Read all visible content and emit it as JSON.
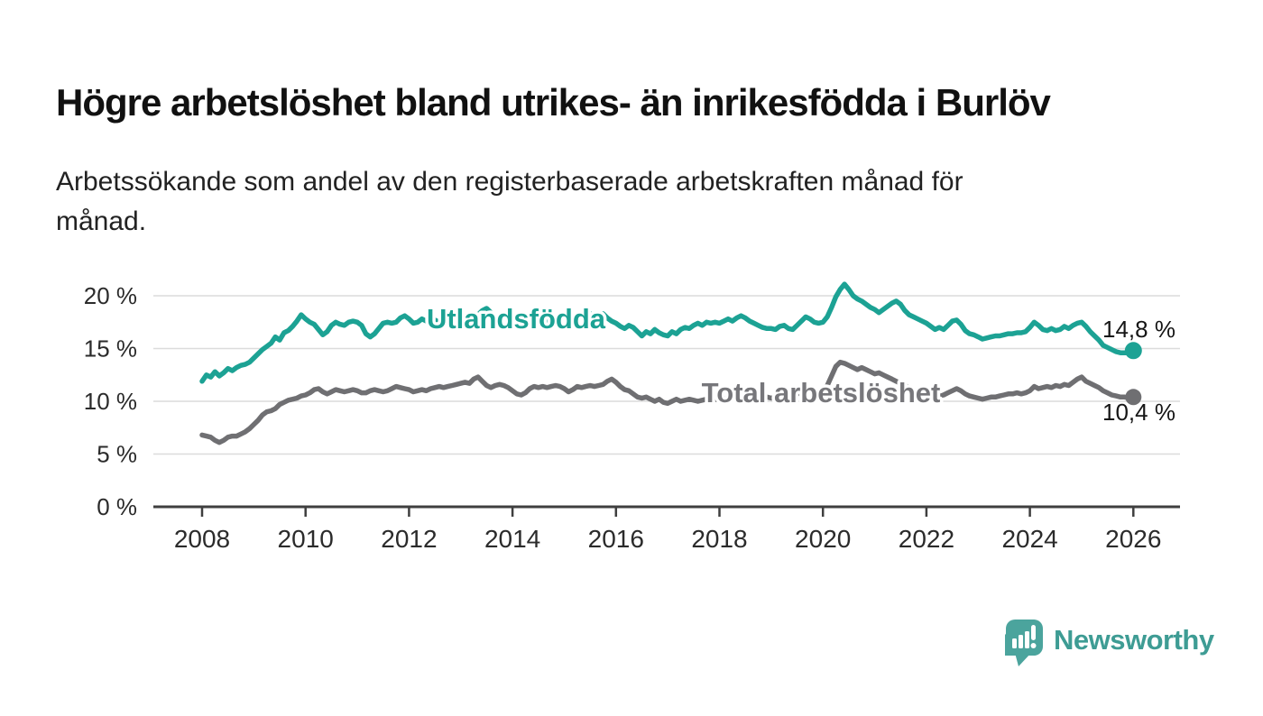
{
  "page": {
    "title": "Högre arbetslöshet bland utrikes- än inrikesfödda i Burlöv",
    "subtitle_line1": "Arbetssökande som andel av den registerbaserade arbetskraften månad för",
    "subtitle_line2": "månad."
  },
  "branding": {
    "logo_text": "Newsworthy",
    "logo_icon": "speech-bubble-bar-chart-icon",
    "icon_color": "#4BA49D",
    "text_color": "#3E9C94"
  },
  "chart_data": {
    "type": "line",
    "frequency": "monthly",
    "x_start_year": 2008,
    "x_end_year": 2026,
    "x_tick_labels": [
      "2008",
      "2010",
      "2012",
      "2014",
      "2016",
      "2018",
      "2020",
      "2022",
      "2024",
      "2026"
    ],
    "y_ticks": [
      0,
      5,
      10,
      15,
      20
    ],
    "y_tick_labels": [
      "0 %",
      "5 %",
      "10 %",
      "15 %",
      "20 %"
    ],
    "ylim": [
      0,
      22
    ],
    "grid": "horizontal",
    "grid_color": "#DCDCDC",
    "axis_color": "#3F3F3F",
    "tick_text_color": "#2B2B2B",
    "value_label_color": "#161616",
    "series": [
      {
        "name": "Utlandsfödda",
        "color": "#1CA294",
        "label_color": "#1CA294",
        "end_value": 14.8,
        "end_value_label": "14,8 %",
        "values": [
          11.9,
          12.5,
          12.3,
          12.8,
          12.4,
          12.7,
          13.1,
          12.9,
          13.2,
          13.4,
          13.5,
          13.7,
          14.1,
          14.5,
          14.9,
          15.2,
          15.5,
          16.1,
          15.8,
          16.5,
          16.7,
          17.1,
          17.6,
          18.2,
          17.8,
          17.5,
          17.3,
          16.8,
          16.3,
          16.6,
          17.2,
          17.5,
          17.3,
          17.2,
          17.5,
          17.6,
          17.5,
          17.2,
          16.4,
          16.1,
          16.4,
          16.9,
          17.4,
          17.5,
          17.4,
          17.5,
          17.9,
          18.1,
          17.8,
          17.4,
          17.5,
          17.8,
          17.6,
          17.4,
          17.7,
          17.5,
          17.3,
          17.6,
          17.8,
          17.6,
          17.7,
          17.9,
          18.1,
          17.9,
          18.2,
          18.6,
          18.8,
          18.4,
          18.0,
          17.8,
          17.9,
          17.7,
          17.6,
          17.8,
          17.6,
          17.4,
          17.6,
          17.8,
          17.5,
          17.3,
          17.5,
          17.7,
          17.6,
          17.8,
          17.9,
          17.7,
          17.8,
          18.0,
          17.9,
          18.1,
          18.3,
          18.1,
          17.9,
          18.3,
          17.9,
          17.6,
          17.4,
          17.1,
          16.9,
          17.2,
          17.0,
          16.6,
          16.2,
          16.6,
          16.4,
          16.8,
          16.5,
          16.3,
          16.2,
          16.6,
          16.4,
          16.8,
          17.0,
          16.9,
          17.2,
          17.4,
          17.2,
          17.5,
          17.4,
          17.5,
          17.4,
          17.6,
          17.8,
          17.6,
          17.9,
          18.1,
          17.9,
          17.6,
          17.4,
          17.2,
          17.0,
          16.9,
          16.9,
          16.8,
          17.1,
          17.2,
          16.9,
          16.8,
          17.2,
          17.6,
          18.0,
          17.8,
          17.5,
          17.4,
          17.5,
          18.0,
          18.9,
          19.9,
          20.6,
          21.1,
          20.6,
          20.0,
          19.7,
          19.5,
          19.2,
          18.9,
          18.7,
          18.4,
          18.7,
          19.0,
          19.3,
          19.5,
          19.2,
          18.6,
          18.2,
          18.0,
          17.8,
          17.6,
          17.4,
          17.1,
          16.8,
          17.0,
          16.8,
          17.2,
          17.6,
          17.7,
          17.3,
          16.7,
          16.4,
          16.3,
          16.1,
          15.9,
          16.0,
          16.1,
          16.2,
          16.2,
          16.3,
          16.4,
          16.4,
          16.5,
          16.5,
          16.6,
          17.0,
          17.5,
          17.2,
          16.8,
          16.7,
          16.9,
          16.7,
          16.8,
          17.1,
          16.9,
          17.2,
          17.4,
          17.5,
          17.1,
          16.6,
          16.2,
          15.8,
          15.3,
          15.1,
          14.9,
          14.7,
          14.6,
          14.6,
          14.6,
          14.8
        ]
      },
      {
        "name": "Total arbetslöshet",
        "color": "#6F6F72",
        "label_color": "#77777B",
        "end_value": 10.4,
        "end_value_label": "10,4 %",
        "values": [
          6.8,
          6.7,
          6.6,
          6.3,
          6.1,
          6.3,
          6.6,
          6.7,
          6.7,
          6.9,
          7.1,
          7.4,
          7.8,
          8.2,
          8.7,
          9.0,
          9.1,
          9.3,
          9.7,
          9.9,
          10.1,
          10.2,
          10.3,
          10.5,
          10.6,
          10.8,
          11.1,
          11.2,
          10.9,
          10.7,
          10.9,
          11.1,
          11.0,
          10.9,
          11.0,
          11.1,
          11.0,
          10.8,
          10.8,
          11.0,
          11.1,
          11.0,
          10.9,
          11.0,
          11.2,
          11.4,
          11.3,
          11.2,
          11.1,
          10.9,
          11.0,
          11.1,
          11.0,
          11.2,
          11.3,
          11.4,
          11.3,
          11.4,
          11.5,
          11.6,
          11.7,
          11.8,
          11.7,
          12.1,
          12.3,
          11.9,
          11.5,
          11.3,
          11.5,
          11.6,
          11.5,
          11.3,
          11.0,
          10.7,
          10.6,
          10.8,
          11.2,
          11.4,
          11.3,
          11.4,
          11.3,
          11.4,
          11.5,
          11.4,
          11.2,
          10.9,
          11.1,
          11.4,
          11.3,
          11.4,
          11.5,
          11.4,
          11.5,
          11.6,
          11.9,
          12.1,
          11.8,
          11.4,
          11.1,
          11.0,
          10.7,
          10.4,
          10.3,
          10.4,
          10.2,
          10.0,
          10.2,
          9.9,
          9.8,
          10.0,
          10.2,
          10.0,
          10.1,
          10.2,
          10.1,
          10.0,
          10.1,
          10.2,
          10.3,
          10.2,
          10.1,
          10.2,
          10.3,
          10.2,
          10.3,
          10.4,
          10.3,
          10.2,
          10.3,
          10.4,
          10.5,
          10.4,
          10.3,
          10.4,
          10.5,
          10.6,
          10.5,
          10.6,
          10.7,
          10.8,
          10.9,
          11.0,
          11.0,
          11.0,
          11.1,
          11.5,
          12.4,
          13.3,
          13.7,
          13.6,
          13.4,
          13.2,
          13.0,
          13.2,
          13.0,
          12.8,
          12.6,
          12.7,
          12.5,
          12.3,
          12.1,
          11.9,
          11.7,
          11.5,
          11.3,
          11.1,
          10.9,
          10.7,
          10.6,
          10.5,
          10.4,
          10.5,
          10.6,
          10.8,
          11.0,
          11.2,
          11.0,
          10.7,
          10.5,
          10.4,
          10.3,
          10.2,
          10.3,
          10.4,
          10.4,
          10.5,
          10.6,
          10.7,
          10.7,
          10.8,
          10.7,
          10.8,
          11.0,
          11.4,
          11.2,
          11.3,
          11.4,
          11.3,
          11.5,
          11.4,
          11.6,
          11.5,
          11.8,
          12.1,
          12.3,
          11.9,
          11.7,
          11.5,
          11.3,
          11.0,
          10.8,
          10.6,
          10.5,
          10.4,
          10.4,
          10.3,
          10.4
        ]
      }
    ]
  }
}
